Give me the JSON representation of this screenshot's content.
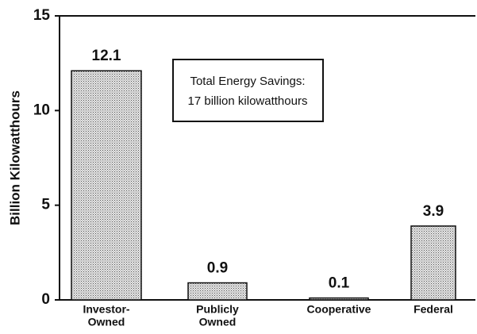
{
  "chart_data": {
    "type": "bar",
    "y_label": "Billion Kilowatthours",
    "annotation": [
      "Total Energy Savings:",
      "17 billion kilowatthours"
    ],
    "categories": [
      [
        "Investor-",
        "Owned"
      ],
      [
        "Publicly",
        "Owned"
      ],
      [
        "Cooperative"
      ],
      [
        "Federal"
      ]
    ],
    "values": [
      12.1,
      0.9,
      0.1,
      3.9
    ],
    "ylim": [
      0,
      15
    ],
    "yticks": [
      0,
      5,
      10,
      15
    ],
    "grid": false
  }
}
